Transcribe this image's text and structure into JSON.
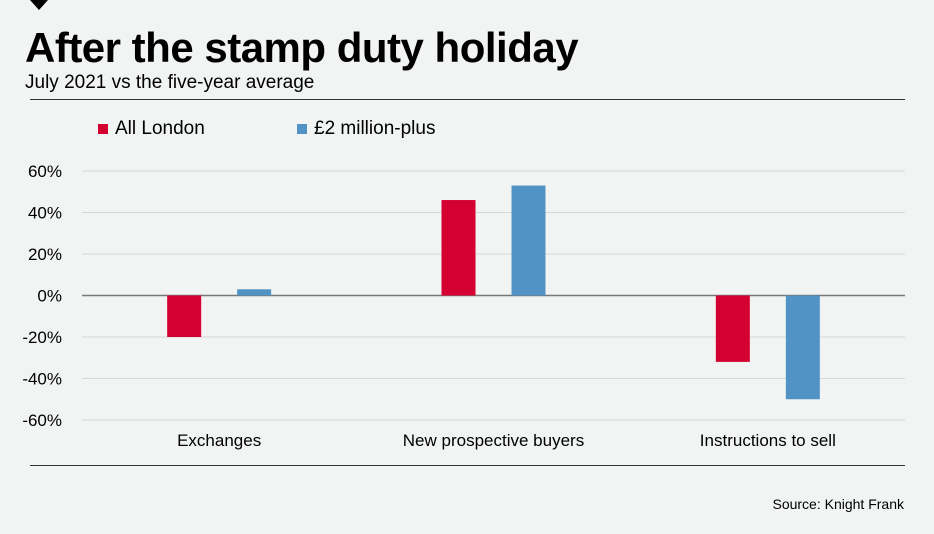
{
  "header": {
    "title": "After the stamp duty holiday",
    "subtitle": "July 2021 vs the five-year average"
  },
  "source": "Source: Knight Frank",
  "colors": {
    "all_london": "#d50032",
    "two_million_plus": "#5293c6"
  },
  "chart_data": {
    "type": "bar",
    "title": "After the stamp duty holiday",
    "subtitle": "July 2021 vs the five-year average",
    "categories": [
      "Exchanges",
      "New prospective buyers",
      "Instructions to sell"
    ],
    "series": [
      {
        "name": "All London",
        "values": [
          -20,
          46,
          -32
        ]
      },
      {
        "name": "£2 million-plus",
        "values": [
          3,
          53,
          -50
        ]
      }
    ],
    "yticks": [
      "60%",
      "40%",
      "20%",
      "0%",
      "-20%",
      "-40%",
      "-60%"
    ],
    "ytick_values": [
      60,
      40,
      20,
      0,
      -20,
      -40,
      -60
    ],
    "ylim": [
      -60,
      60
    ],
    "grid": true,
    "legend": "top-left",
    "xlabel": "",
    "ylabel": ""
  }
}
